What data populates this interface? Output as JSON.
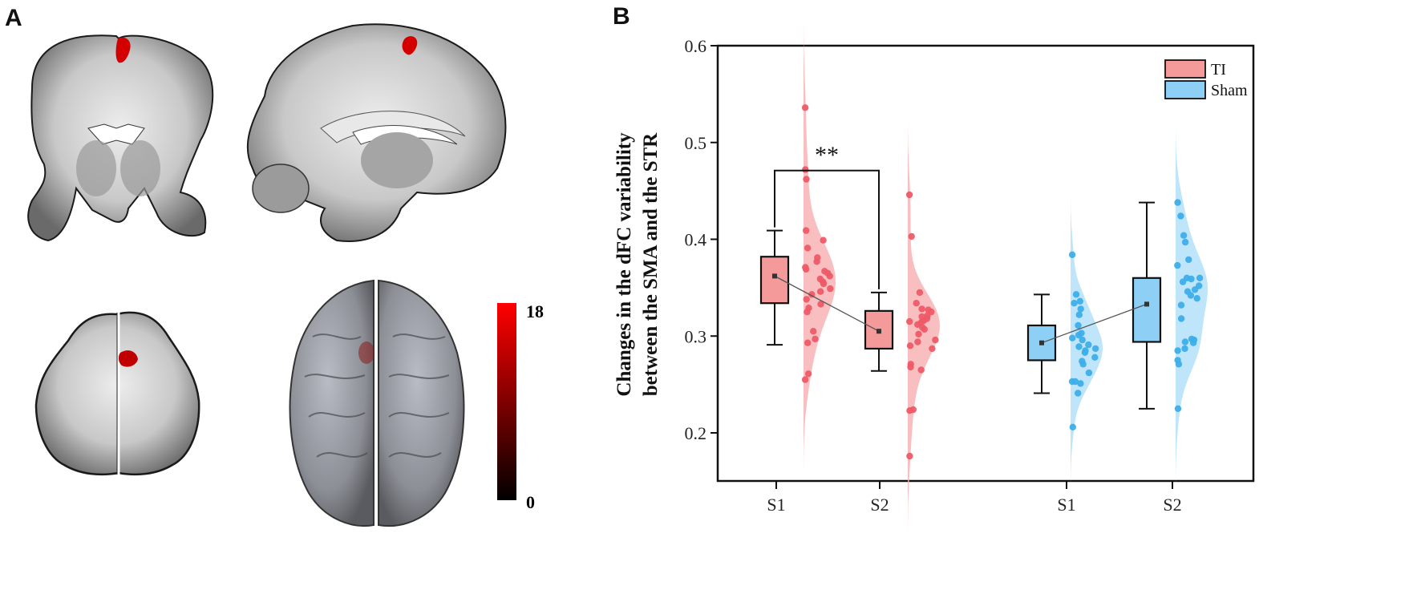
{
  "figure": {
    "panel_a_label": "A",
    "panel_b_label": "B"
  },
  "panel_a": {
    "views": [
      {
        "name": "coronal-slice",
        "highlight": "SMA cluster"
      },
      {
        "name": "sagittal-slice",
        "highlight": "SMA cluster"
      },
      {
        "name": "axial-slice",
        "highlight": "SMA cluster"
      },
      {
        "name": "3d-surface-top-view",
        "highlight": "SMA cluster"
      }
    ],
    "colorbar": {
      "max_label": "18",
      "min_label": "0",
      "color_max": "#ff0000",
      "color_min": "#000000"
    }
  },
  "chart_data": {
    "type": "box-violin-scatter (raincloud)",
    "title": "",
    "ylabel_line1": "Changes in the dFC variability",
    "ylabel_line2": "between the SMA and the STR",
    "xlabel": "",
    "ylim": [
      0.15,
      0.6
    ],
    "yticks": [
      "0.2",
      "0.3",
      "0.4",
      "0.5",
      "0.6"
    ],
    "ytick_values": [
      0.2,
      0.3,
      0.4,
      0.5,
      0.6
    ],
    "categories": [
      "S1",
      "S2",
      "S1",
      "S2"
    ],
    "legend": {
      "position": "upper-right",
      "entries": [
        {
          "label": "TI",
          "color": "#f59a9a"
        },
        {
          "label": "Sham",
          "color": "#8dcff5"
        }
      ]
    },
    "colors": {
      "ti_box": "#f59a9a",
      "ti_violin": "#f7b3b5",
      "ti_point": "#ee5a67",
      "sham_box": "#8dcff5",
      "sham_violin": "#b3e0f8",
      "sham_point": "#3eaee9",
      "mean_line": "#555555"
    },
    "annotation": {
      "text": "**",
      "between": [
        "TI S1",
        "TI S2"
      ],
      "bracket_y": 0.471
    },
    "series": [
      {
        "name": "TI",
        "groups": [
          {
            "label": "S1",
            "whisker_low": 0.291,
            "q1": 0.334,
            "median_mean_marker": 0.362,
            "q3": 0.382,
            "whisker_high": 0.409,
            "points": [
              0.536,
              0.472,
              0.462,
              0.409,
              0.399,
              0.391,
              0.381,
              0.377,
              0.371,
              0.369,
              0.367,
              0.365,
              0.362,
              0.359,
              0.356,
              0.354,
              0.349,
              0.346,
              0.343,
              0.338,
              0.333,
              0.329,
              0.325,
              0.305,
              0.297,
              0.293,
              0.261,
              0.255
            ]
          },
          {
            "label": "S2",
            "whisker_low": 0.264,
            "q1": 0.287,
            "median_mean_marker": 0.305,
            "q3": 0.326,
            "whisker_high": 0.345,
            "points": [
              0.446,
              0.403,
              0.345,
              0.334,
              0.328,
              0.327,
              0.325,
              0.321,
              0.32,
              0.318,
              0.316,
              0.315,
              0.314,
              0.312,
              0.309,
              0.307,
              0.302,
              0.296,
              0.294,
              0.29,
              0.287,
              0.271,
              0.268,
              0.265,
              0.224,
              0.223,
              0.176
            ]
          }
        ]
      },
      {
        "name": "Sham",
        "groups": [
          {
            "label": "S1",
            "whisker_low": 0.241,
            "q1": 0.275,
            "median_mean_marker": 0.293,
            "q3": 0.311,
            "whisker_high": 0.343,
            "points": [
              0.384,
              0.343,
              0.336,
              0.334,
              0.328,
              0.322,
              0.311,
              0.303,
              0.301,
              0.298,
              0.296,
              0.291,
              0.289,
              0.287,
              0.285,
              0.283,
              0.278,
              0.274,
              0.271,
              0.262,
              0.253,
              0.253,
              0.251,
              0.241,
              0.206
            ]
          },
          {
            "label": "S2",
            "whisker_low": 0.225,
            "q1": 0.294,
            "median_mean_marker": 0.333,
            "q3": 0.36,
            "whisker_high": 0.438,
            "points": [
              0.438,
              0.424,
              0.404,
              0.397,
              0.379,
              0.373,
              0.36,
              0.36,
              0.359,
              0.356,
              0.352,
              0.348,
              0.346,
              0.342,
              0.339,
              0.332,
              0.318,
              0.297,
              0.296,
              0.294,
              0.293,
              0.287,
              0.285,
              0.275,
              0.271,
              0.225
            ]
          }
        ]
      }
    ]
  }
}
